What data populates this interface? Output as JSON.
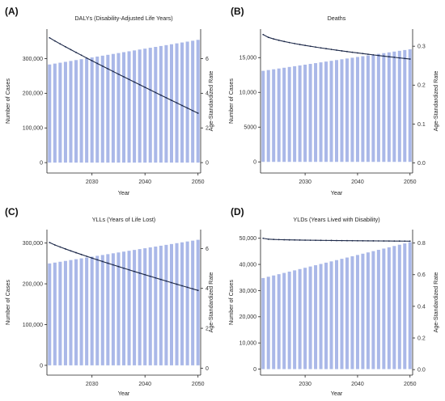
{
  "colors": {
    "bar": "#aab8e8",
    "line": "#1e2a4a",
    "axis": "#222222"
  },
  "chart_data": [
    {
      "panel": "(A)",
      "type": "bar+line",
      "title": "DALYs (Disability-Adjusted Life Years)",
      "xlabel": "Year",
      "ylabel_left": "Number of Cases",
      "ylabel_right": "Age-Standardized Rate",
      "x_ticks": [
        "2030",
        "2040",
        "2050"
      ],
      "left_ticks": [
        "0",
        "100,000",
        "200,000",
        "300,000"
      ],
      "right_ticks": [
        "0",
        "2",
        "4",
        "6"
      ],
      "ylim_left": [
        -30000,
        385000
      ],
      "ylim_right": [
        -0.6,
        7.7
      ],
      "years": {
        "start": 2022,
        "end": 2050
      },
      "bars": {
        "start": 283000,
        "end": 354000,
        "curve": 1
      },
      "line": {
        "start": 7.2,
        "end": 2.85,
        "curve": 0.95
      }
    },
    {
      "panel": "(B)",
      "type": "bar+line",
      "title": "Deaths",
      "xlabel": "Year",
      "ylabel_left": "Number of Cases",
      "ylabel_right": "Age-Standardized Rate",
      "x_ticks": [
        "2030",
        "2040",
        "2050"
      ],
      "left_ticks": [
        "0",
        "5000",
        "10,000",
        "15,000"
      ],
      "right_ticks": [
        "0.0",
        "0.1",
        "0.2",
        "0.3"
      ],
      "ylim_left": [
        -1600,
        19100
      ],
      "ylim_right": [
        -0.026,
        0.344
      ],
      "years": {
        "start": 2022,
        "end": 2050
      },
      "bars": {
        "start": 13100,
        "end": 16200,
        "curve": 1
      },
      "line": {
        "start": 0.33,
        "end": 0.267,
        "curve": 0.65
      }
    },
    {
      "panel": "(C)",
      "type": "bar+line",
      "title": "YLLs (Years of Life Lost)",
      "xlabel": "Year",
      "ylabel_left": "Number of Cases",
      "ylabel_right": "Age-Standardized Rate",
      "x_ticks": [
        "2030",
        "2040",
        "2050"
      ],
      "left_ticks": [
        "0",
        "100,000",
        "200,000",
        "300,000"
      ],
      "right_ticks": [
        "0",
        "2",
        "4",
        "6"
      ],
      "ylim_left": [
        -24000,
        333000
      ],
      "ylim_right": [
        -0.35,
        6.95
      ],
      "years": {
        "start": 2022,
        "end": 2050
      },
      "bars": {
        "start": 250000,
        "end": 308000,
        "curve": 1
      },
      "line": {
        "start": 6.3,
        "end": 3.9,
        "curve": 0.9
      }
    },
    {
      "panel": "(D)",
      "type": "bar+line",
      "title": "YLDs (Years Lived with Disability)",
      "xlabel": "Year",
      "ylabel_left": "Number of Cases",
      "ylabel_right": "Age-Standardized Rate",
      "x_ticks": [
        "2030",
        "2040",
        "2050"
      ],
      "left_ticks": [
        "0",
        "10,000",
        "20,000",
        "30,000",
        "40,000",
        "50,000"
      ],
      "right_ticks": [
        "0.0",
        "0.2",
        "0.4",
        "0.6",
        "0.8"
      ],
      "ylim_left": [
        -2300,
        53300
      ],
      "ylim_right": [
        -0.035,
        0.885
      ],
      "years": {
        "start": 2022,
        "end": 2050
      },
      "bars": {
        "start": 34800,
        "end": 48500,
        "curve": 1
      },
      "line": {
        "start": 0.83,
        "end": 0.812,
        "curve": 0.35
      }
    }
  ]
}
